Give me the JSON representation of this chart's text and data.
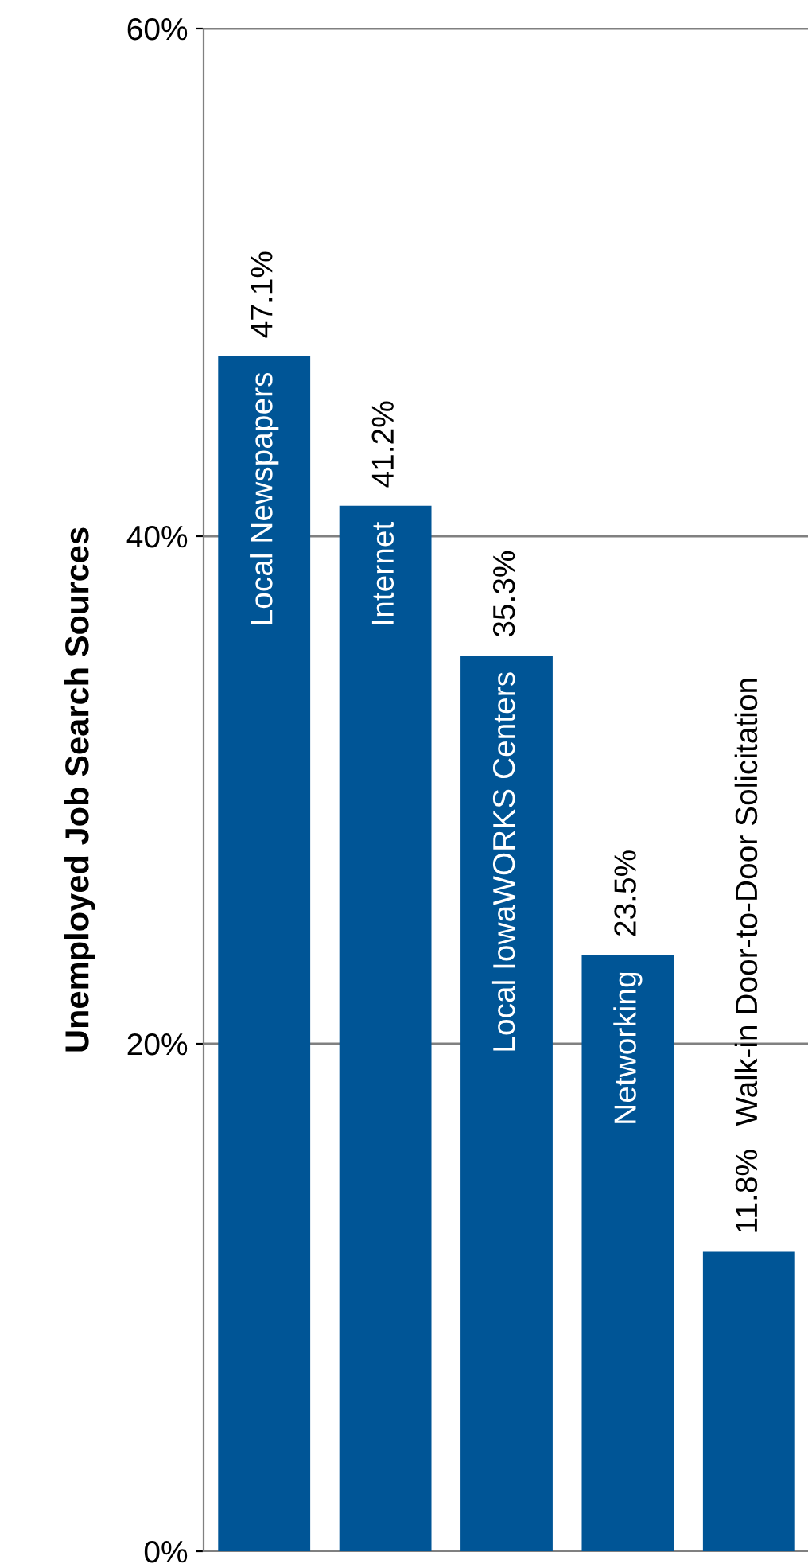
{
  "chart_data": {
    "type": "bar",
    "ylabel": "Unemployed Job Search Sources",
    "categories": [
      "Local Newspapers",
      "Internet",
      "Local IowaWORKS Centers",
      "Networking",
      "Walk-in Door-to-Door Solicitation"
    ],
    "values": [
      47.1,
      41.2,
      35.3,
      23.5,
      11.8
    ],
    "value_labels": [
      "47.1%",
      "41.2%",
      "35.3%",
      "23.5%",
      "11.8%"
    ],
    "color": "#005596",
    "ylim": [
      0,
      60
    ],
    "yticks": [
      {
        "value": 0,
        "label": "0%"
      },
      {
        "value": 20,
        "label": "20%"
      },
      {
        "value": 40,
        "label": "40%"
      },
      {
        "value": 60,
        "label": "60%"
      }
    ],
    "grid": "y",
    "legend": false
  }
}
